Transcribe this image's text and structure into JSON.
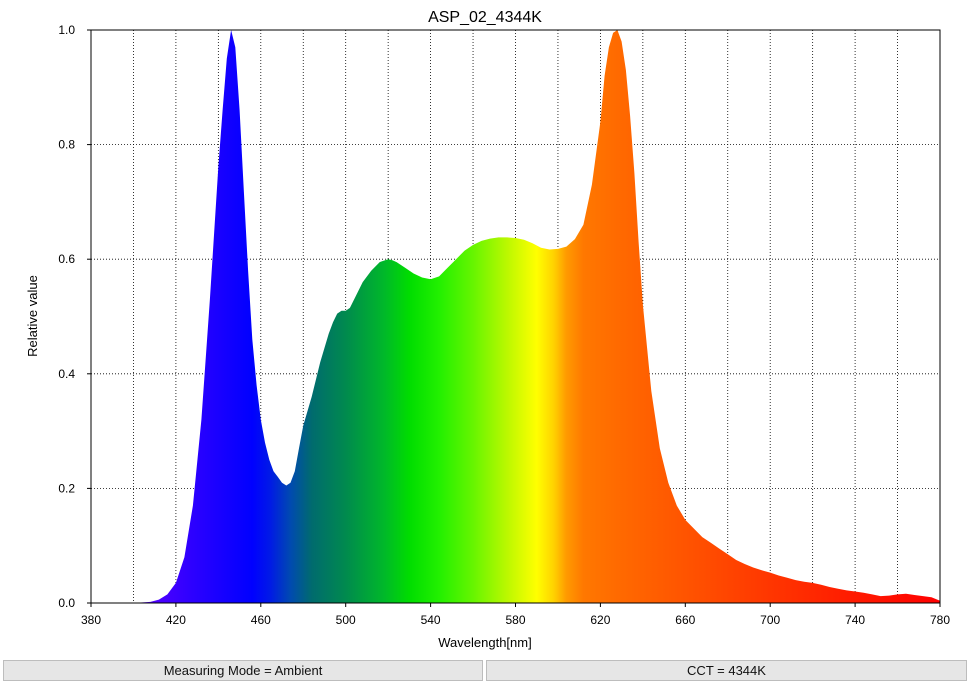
{
  "chart_data": {
    "type": "area",
    "title": "ASP_02_4344K",
    "xlabel": "Wavelength[nm]",
    "ylabel": "Relative value",
    "xlim": [
      380,
      780
    ],
    "ylim": [
      0,
      1.0
    ],
    "x_ticks": [
      380,
      420,
      460,
      500,
      540,
      580,
      620,
      660,
      700,
      740,
      780
    ],
    "x_tick_labels": [
      "380",
      "420",
      "460",
      "500",
      "540",
      "580",
      "620",
      "660",
      "700",
      "740",
      "780"
    ],
    "y_ticks": [
      0,
      0.2,
      0.4,
      0.6,
      0.8,
      1.0
    ],
    "y_tick_labels": [
      "0.0",
      "0.2",
      "0.4",
      "0.6",
      "0.8",
      "1.0"
    ],
    "grid": true,
    "fill": "spectral",
    "series": [
      {
        "x": [
          380,
          400,
          408,
          412,
          416,
          420,
          424,
          428,
          432,
          436,
          440,
          442,
          444,
          446,
          448,
          450,
          452,
          454,
          456,
          458,
          460,
          462,
          464,
          466,
          468,
          470,
          472,
          474,
          476,
          478,
          480,
          484,
          488,
          492,
          494,
          496,
          498,
          500,
          502,
          504,
          508,
          512,
          516,
          520,
          522,
          524,
          528,
          532,
          536,
          540,
          544,
          548,
          552,
          556,
          560,
          564,
          568,
          572,
          576,
          580,
          584,
          588,
          592,
          596,
          600,
          604,
          608,
          612,
          616,
          620,
          622,
          624,
          626,
          628,
          630,
          632,
          634,
          636,
          638,
          640,
          644,
          648,
          652,
          656,
          660,
          664,
          668,
          672,
          676,
          680,
          684,
          688,
          692,
          696,
          700,
          704,
          708,
          712,
          716,
          720,
          724,
          728,
          732,
          736,
          740,
          744,
          748,
          752,
          756,
          760,
          764,
          768,
          772,
          776,
          780
        ],
        "y": [
          0,
          0,
          0.002,
          0.006,
          0.015,
          0.035,
          0.08,
          0.17,
          0.32,
          0.53,
          0.76,
          0.86,
          0.95,
          1.0,
          0.97,
          0.86,
          0.72,
          0.58,
          0.46,
          0.38,
          0.32,
          0.28,
          0.25,
          0.23,
          0.22,
          0.21,
          0.205,
          0.21,
          0.23,
          0.27,
          0.31,
          0.36,
          0.42,
          0.47,
          0.49,
          0.505,
          0.51,
          0.51,
          0.515,
          0.53,
          0.56,
          0.58,
          0.595,
          0.6,
          0.598,
          0.595,
          0.585,
          0.575,
          0.568,
          0.565,
          0.57,
          0.585,
          0.6,
          0.615,
          0.625,
          0.632,
          0.636,
          0.638,
          0.638,
          0.637,
          0.634,
          0.628,
          0.62,
          0.617,
          0.618,
          0.622,
          0.635,
          0.66,
          0.73,
          0.84,
          0.92,
          0.97,
          0.995,
          1.0,
          0.98,
          0.93,
          0.85,
          0.75,
          0.63,
          0.52,
          0.37,
          0.27,
          0.21,
          0.17,
          0.145,
          0.13,
          0.115,
          0.105,
          0.095,
          0.085,
          0.075,
          0.068,
          0.062,
          0.057,
          0.053,
          0.048,
          0.044,
          0.04,
          0.037,
          0.035,
          0.032,
          0.028,
          0.025,
          0.022,
          0.02,
          0.018,
          0.015,
          0.012,
          0.013,
          0.015,
          0.016,
          0.014,
          0.012,
          0.01,
          0.004
        ]
      }
    ]
  },
  "status": {
    "measuring_mode": "Measuring Mode = Ambient",
    "cct": "CCT = 4344K"
  }
}
